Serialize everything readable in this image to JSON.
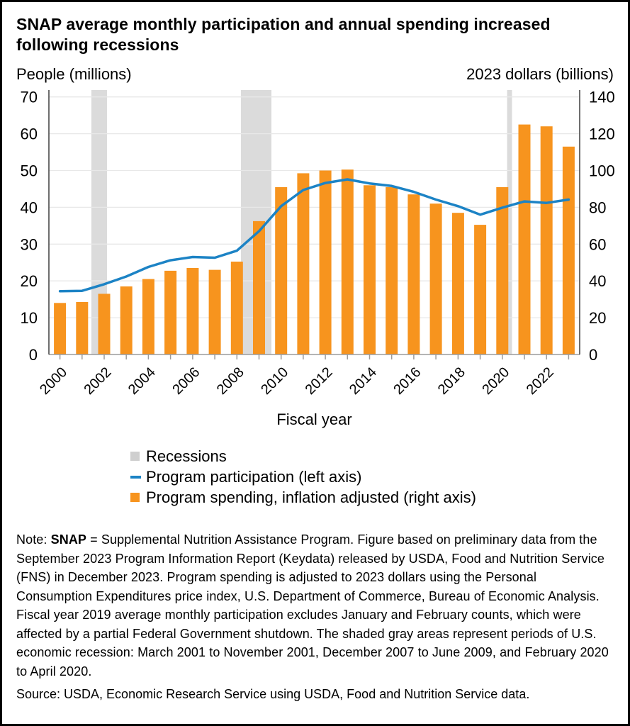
{
  "title": "SNAP average monthly participation and annual spending increased following recessions",
  "left_axis_header": "People (millions)",
  "right_axis_header": "2023 dollars (billions)",
  "legend": {
    "recessions_label": "Recessions",
    "participation_label": "Program participation (left axis)",
    "spending_label": "Program spending, inflation adjusted (right axis)"
  },
  "note": {
    "prefix": "Note: ",
    "snap_bold": "SNAP",
    "body": " = Supplemental Nutrition Assistance Program. Figure based on preliminary data from the September 2023 Program Information Report (Keydata) released by USDA, Food and Nutrition Service (FNS) in December 2023. Program spending is adjusted to 2023 dollars using the Personal Consumption Expenditures price index, U.S. Department of Commerce, Bureau of Economic Analysis. Fiscal year 2019 average monthly participation excludes January and February counts, which were affected by a partial Federal Government shutdown. The shaded gray areas represent periods of U.S. economic recession: March 2001 to November 2001, December 2007 to June 2009, and February 2020 to April 2020."
  },
  "source": "Source: USDA, Economic Research Service using USDA, Food and Nutrition Service data.",
  "colors": {
    "bar_orange": "#F7941E",
    "line_blue": "#1C83C5",
    "recession_gray": "#DBDBDB",
    "legend_gray": "#CFCFCF",
    "gridline": "#E8E8E8",
    "axis_dark": "#3F3F3F",
    "axis_light": "#9B9B9B"
  },
  "chart_data": {
    "type": "combo-bar-line",
    "title": "SNAP average monthly participation and annual spending increased following recessions",
    "xlabel": "Fiscal year",
    "x": [
      2000,
      2001,
      2002,
      2003,
      2004,
      2005,
      2006,
      2007,
      2008,
      2009,
      2010,
      2011,
      2012,
      2013,
      2014,
      2015,
      2016,
      2017,
      2018,
      2019,
      2020,
      2021,
      2022,
      2023
    ],
    "x_tick_labels": [
      "2000",
      "2002",
      "2004",
      "2006",
      "2008",
      "2010",
      "2012",
      "2014",
      "2016",
      "2018",
      "2020",
      "2022"
    ],
    "left_axis": {
      "label": "People (millions)",
      "min": 0,
      "max": 70,
      "tick_step": 10
    },
    "right_axis": {
      "label": "2023 dollars (billions)",
      "min": 0,
      "max": 140,
      "tick_step": 20
    },
    "series": [
      {
        "name": "Program participation (left axis)",
        "type": "line",
        "axis": "left",
        "values": [
          17.2,
          17.3,
          19.1,
          21.2,
          23.8,
          25.6,
          26.5,
          26.3,
          28.2,
          33.5,
          40.3,
          44.7,
          46.6,
          47.6,
          46.5,
          45.8,
          44.2,
          42.1,
          40.3,
          38.0,
          39.9,
          41.6,
          41.2,
          42.1
        ]
      },
      {
        "name": "Program spending, inflation adjusted (right axis)",
        "type": "bar",
        "axis": "right",
        "values": [
          28,
          28.5,
          33,
          37,
          41,
          45.5,
          47,
          46,
          50.5,
          72.5,
          91,
          98.5,
          100,
          100.5,
          92,
          91,
          87,
          82,
          77,
          70.5,
          91,
          125,
          124,
          113
        ]
      }
    ],
    "recession_bands": [
      {
        "label": "March 2001 to November 2001",
        "x_start": 2001.42,
        "x_end": 2002.13
      },
      {
        "label": "December 2007 to June 2009",
        "x_start": 2008.18,
        "x_end": 2009.56
      },
      {
        "label": "February 2020 to April 2020",
        "x_start": 2020.22,
        "x_end": 2020.44
      }
    ],
    "grid": true,
    "legend_position": "bottom-left"
  }
}
